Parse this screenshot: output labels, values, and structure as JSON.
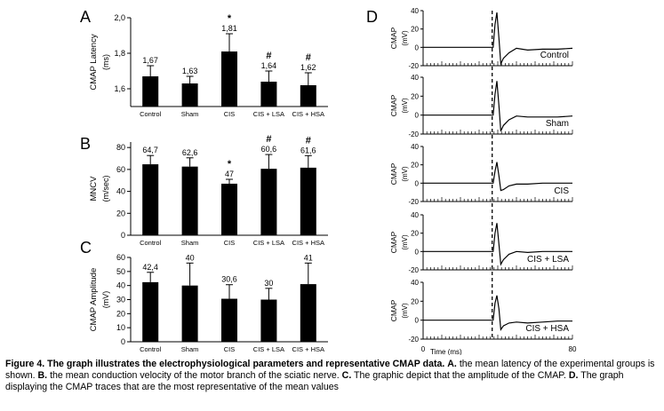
{
  "chart_data": [
    {
      "panel": "A",
      "type": "bar",
      "categories": [
        "Control",
        "Sham",
        "CIS",
        "CIS + LSA",
        "CIS + HSA"
      ],
      "values": [
        1.67,
        1.63,
        1.81,
        1.64,
        1.62
      ],
      "value_labels": [
        "1,67",
        "1,63",
        "1,81",
        "1,64",
        "1,62"
      ],
      "error": [
        0.06,
        0.04,
        0.1,
        0.06,
        0.07
      ],
      "marks": [
        "",
        "",
        "*",
        "#",
        "#"
      ],
      "ylabel": "CMAP Latency",
      "yunit": "(ms)",
      "ylim": [
        1.5,
        2.0
      ],
      "yticks": [
        1.6,
        1.8,
        2.0
      ],
      "ytick_labels": [
        "1,6",
        "1,8",
        "2,0"
      ]
    },
    {
      "panel": "B",
      "type": "bar",
      "categories": [
        "Control",
        "Sham",
        "CIS",
        "CIS + LSA",
        "CIS + HSA"
      ],
      "values": [
        64.7,
        62.6,
        47,
        60.6,
        61.6
      ],
      "value_labels": [
        "64,7",
        "62,6",
        "47",
        "60,6",
        "61,6"
      ],
      "error": [
        8,
        8,
        4,
        13,
        11
      ],
      "marks": [
        "",
        "",
        "*",
        "#",
        "#"
      ],
      "ylabel": "MNCV",
      "yunit": "(m/sec)",
      "ylim": [
        0,
        85
      ],
      "yticks": [
        0,
        20,
        40,
        60,
        80
      ],
      "ytick_labels": [
        "0",
        "20",
        "40",
        "60",
        "80"
      ]
    },
    {
      "panel": "C",
      "type": "bar",
      "categories": [
        "Control",
        "Sham",
        "CIS",
        "CIS + LSA",
        "CIS + HSA"
      ],
      "values": [
        42.4,
        40,
        30.6,
        30,
        41
      ],
      "value_labels": [
        "42,4",
        "40",
        "30,6",
        "30",
        "41"
      ],
      "error": [
        7,
        16,
        10,
        8,
        15
      ],
      "marks": [
        "",
        "",
        "",
        "",
        ""
      ],
      "ylabel": "CMAP Amplitude",
      "yunit": "(mV)",
      "ylim": [
        0,
        60
      ],
      "yticks": [
        0,
        10,
        20,
        30,
        40,
        50,
        60
      ],
      "ytick_labels": [
        "0",
        "10",
        "20",
        "30",
        "40",
        "50",
        "60"
      ]
    },
    {
      "panel": "D",
      "type": "line",
      "xlabel": "Time (ms)",
      "xlim": [
        0,
        80
      ],
      "x_tick_labels": [
        "0",
        "80"
      ],
      "ylabel": "CMAP",
      "yunit": "(mV)",
      "ylim": [
        -20,
        40
      ],
      "yticks": [
        -20,
        0,
        20,
        40
      ],
      "ytick_labels": [
        "-20",
        "0",
        "20",
        "40"
      ],
      "stimulus_x": 37,
      "traces": [
        {
          "label": "Control",
          "x": [
            0,
            37.5,
            38.5,
            39.5,
            40.6,
            41.6,
            43,
            46,
            50,
            56,
            64,
            72,
            80
          ],
          "y": [
            0,
            0,
            25,
            38,
            10,
            -18,
            -12,
            -6,
            -1,
            -3,
            -2,
            -2,
            -1
          ]
        },
        {
          "label": "Sham",
          "x": [
            0,
            37.5,
            38.5,
            39.5,
            40.6,
            41.6,
            43,
            46,
            50,
            56,
            64,
            72,
            80
          ],
          "y": [
            0,
            0,
            22,
            36,
            10,
            -17,
            -11,
            -5,
            -1,
            -2,
            -2,
            -2,
            -1
          ]
        },
        {
          "label": "CIS",
          "x": [
            0,
            37.5,
            38.5,
            39.5,
            40.6,
            41.6,
            43,
            46,
            50,
            56,
            64,
            72,
            80
          ],
          "y": [
            0,
            0,
            13,
            23,
            8,
            -8,
            -7,
            -3,
            -1,
            -1,
            0,
            0,
            0
          ]
        },
        {
          "label": "CIS + LSA",
          "x": [
            0,
            37.5,
            38.5,
            39.5,
            40.6,
            41.6,
            43,
            46,
            50,
            56,
            64,
            72,
            80
          ],
          "y": [
            0,
            0,
            20,
            31,
            8,
            -14,
            -9,
            -3,
            0,
            -1,
            0,
            0,
            0
          ]
        },
        {
          "label": "CIS + HSA",
          "x": [
            0,
            37.5,
            38.5,
            39.5,
            40.6,
            41.6,
            43,
            46,
            50,
            56,
            64,
            72,
            80
          ],
          "y": [
            0,
            0,
            18,
            26,
            12,
            -10,
            -6,
            -3,
            -2,
            -3,
            -2,
            -1,
            -1
          ]
        }
      ]
    }
  ],
  "caption": {
    "figure_label": "Figure 4. The graph illustrates the electrophysiological parameters and representative CMAP data.",
    "a_label": "A.",
    "a_text": "the mean latency of the experimental groups is shown.",
    "b_label": "B.",
    "b_text": "the mean conduction velocity of the motor branch of the sciatic nerve.",
    "c_label": "C.",
    "c_text": "The graphic depict that the amplitude of the CMAP.",
    "d_label": "D.",
    "d_text": "The graph displaying the CMAP traces that are the most representative of the mean values"
  }
}
